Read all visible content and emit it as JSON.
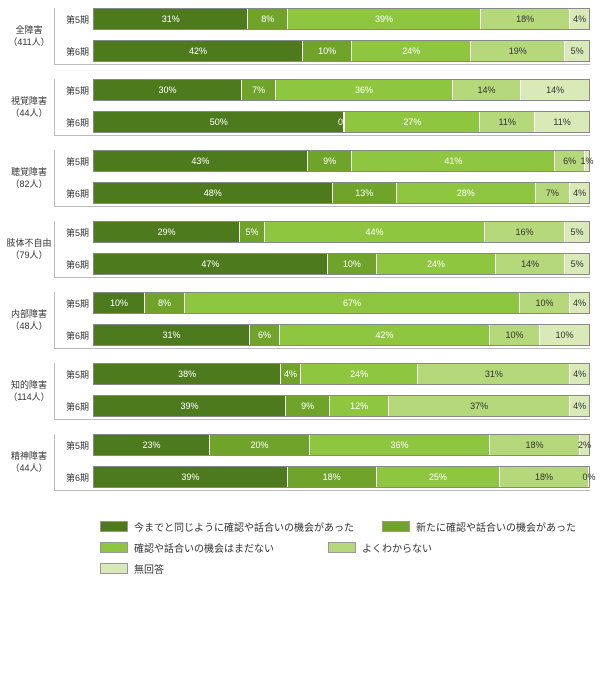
{
  "chart": {
    "type": "stacked-bar-horizontal",
    "categories": [
      "今までと同じように確認や話合いの機会があった",
      "新たに確認や話合いの機会があった",
      "確認や話合いの機会はまだない",
      "よくわからない",
      "無回答"
    ],
    "colors": [
      "#4e7a1e",
      "#6fa32a",
      "#8fc63f",
      "#b5d97a",
      "#d9e9b8"
    ],
    "text_mode": [
      "dark",
      "dark",
      "dark",
      "light",
      "light"
    ],
    "row_labels": [
      "第5期",
      "第6期"
    ],
    "label_fontsize": 9,
    "value_fontsize": 9,
    "background_color": "#ffffff",
    "axis_color": "#bbbbbb",
    "groups": [
      {
        "name": "全障害",
        "count": "（411人）",
        "rows": [
          [
            31,
            8,
            39,
            18,
            4
          ],
          [
            42,
            10,
            24,
            19,
            5
          ]
        ]
      },
      {
        "name": "視覚障害",
        "count": "（44人）",
        "rows": [
          [
            30,
            7,
            36,
            14,
            14
          ],
          [
            50,
            0,
            27,
            11,
            11
          ]
        ]
      },
      {
        "name": "聴覚障害",
        "count": "（82人）",
        "rows": [
          [
            43,
            9,
            41,
            6,
            1
          ],
          [
            48,
            13,
            28,
            7,
            4
          ]
        ]
      },
      {
        "name": "肢体不自由",
        "count": "（79人）",
        "rows": [
          [
            29,
            5,
            44,
            16,
            5
          ],
          [
            47,
            10,
            24,
            14,
            5
          ]
        ]
      },
      {
        "name": "内部障害",
        "count": "（48人）",
        "rows": [
          [
            10,
            8,
            67,
            10,
            4
          ],
          [
            31,
            6,
            42,
            10,
            10
          ]
        ]
      },
      {
        "name": "知的障害",
        "count": "（114人）",
        "rows": [
          [
            38,
            4,
            24,
            31,
            4
          ],
          [
            39,
            9,
            12,
            37,
            4
          ]
        ]
      },
      {
        "name": "精神障害",
        "count": "（44人）",
        "rows": [
          [
            23,
            20,
            36,
            18,
            2
          ],
          [
            39,
            18,
            25,
            18,
            0
          ]
        ]
      }
    ]
  }
}
